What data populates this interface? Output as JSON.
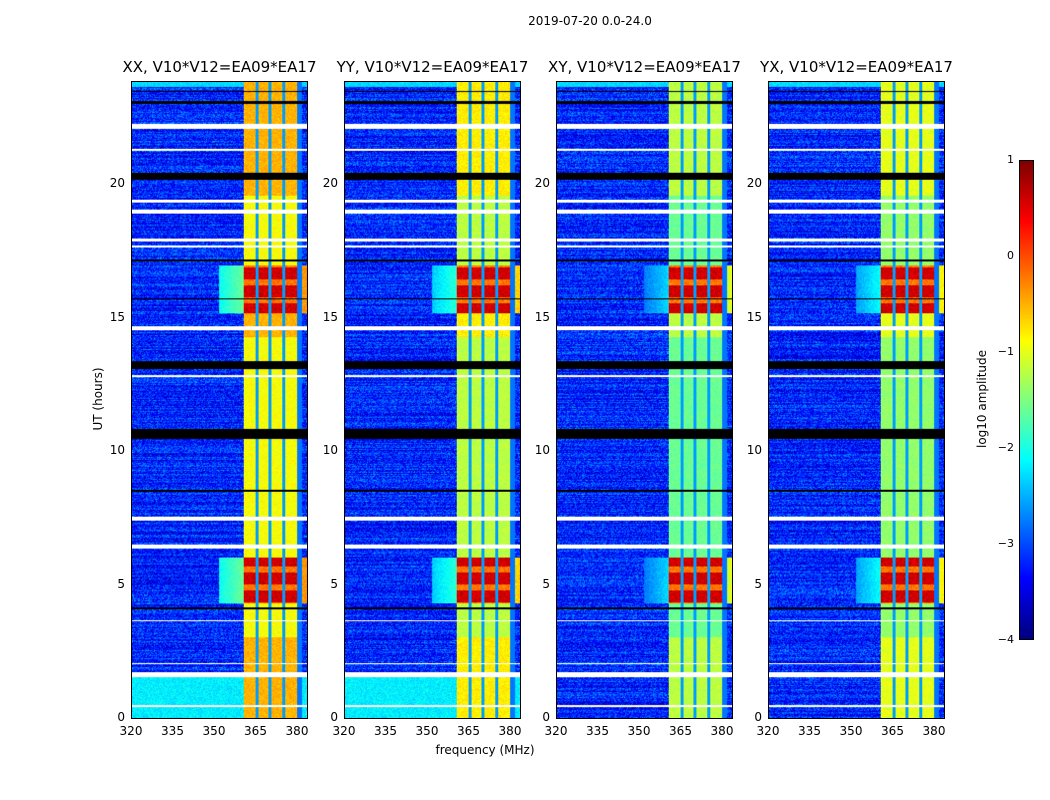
{
  "suptitle": "2019-07-20 0.0-24.0",
  "chart_data": {
    "type": "heatmap",
    "title": "2019-07-20 0.0-24.0",
    "xlabel": "frequency (MHz)",
    "ylabel": "UT (hours)",
    "xlim": [
      320,
      384
    ],
    "ylim": [
      0,
      24
    ],
    "xticks": [
      "320",
      "335",
      "350",
      "365",
      "380"
    ],
    "yticks": [
      "0",
      "5",
      "10",
      "15",
      "20"
    ],
    "panels": [
      {
        "title": "XX, V10*V12=EA09*EA17",
        "band_level": -0.9
      },
      {
        "title": "YY, V10*V12=EA09*EA17",
        "band_level": -1.2
      },
      {
        "title": "XY, V10*V12=EA09*EA17",
        "band_level": -1.6
      },
      {
        "title": "YX, V10*V12=EA09*EA17",
        "band_level": -1.4
      }
    ],
    "background_level": -3.2,
    "strong_band_MHz": [
      360.5,
      380
    ],
    "rfi_hours": [
      [
        4.3,
        6.0
      ],
      [
        15.2,
        17.0
      ]
    ],
    "colorbar": {
      "label": "log10 amplitude",
      "range": [
        -4,
        1
      ],
      "ticks": [
        "1",
        "0",
        "−1",
        "−2",
        "−3",
        "−4"
      ],
      "colormap": "jet"
    }
  }
}
